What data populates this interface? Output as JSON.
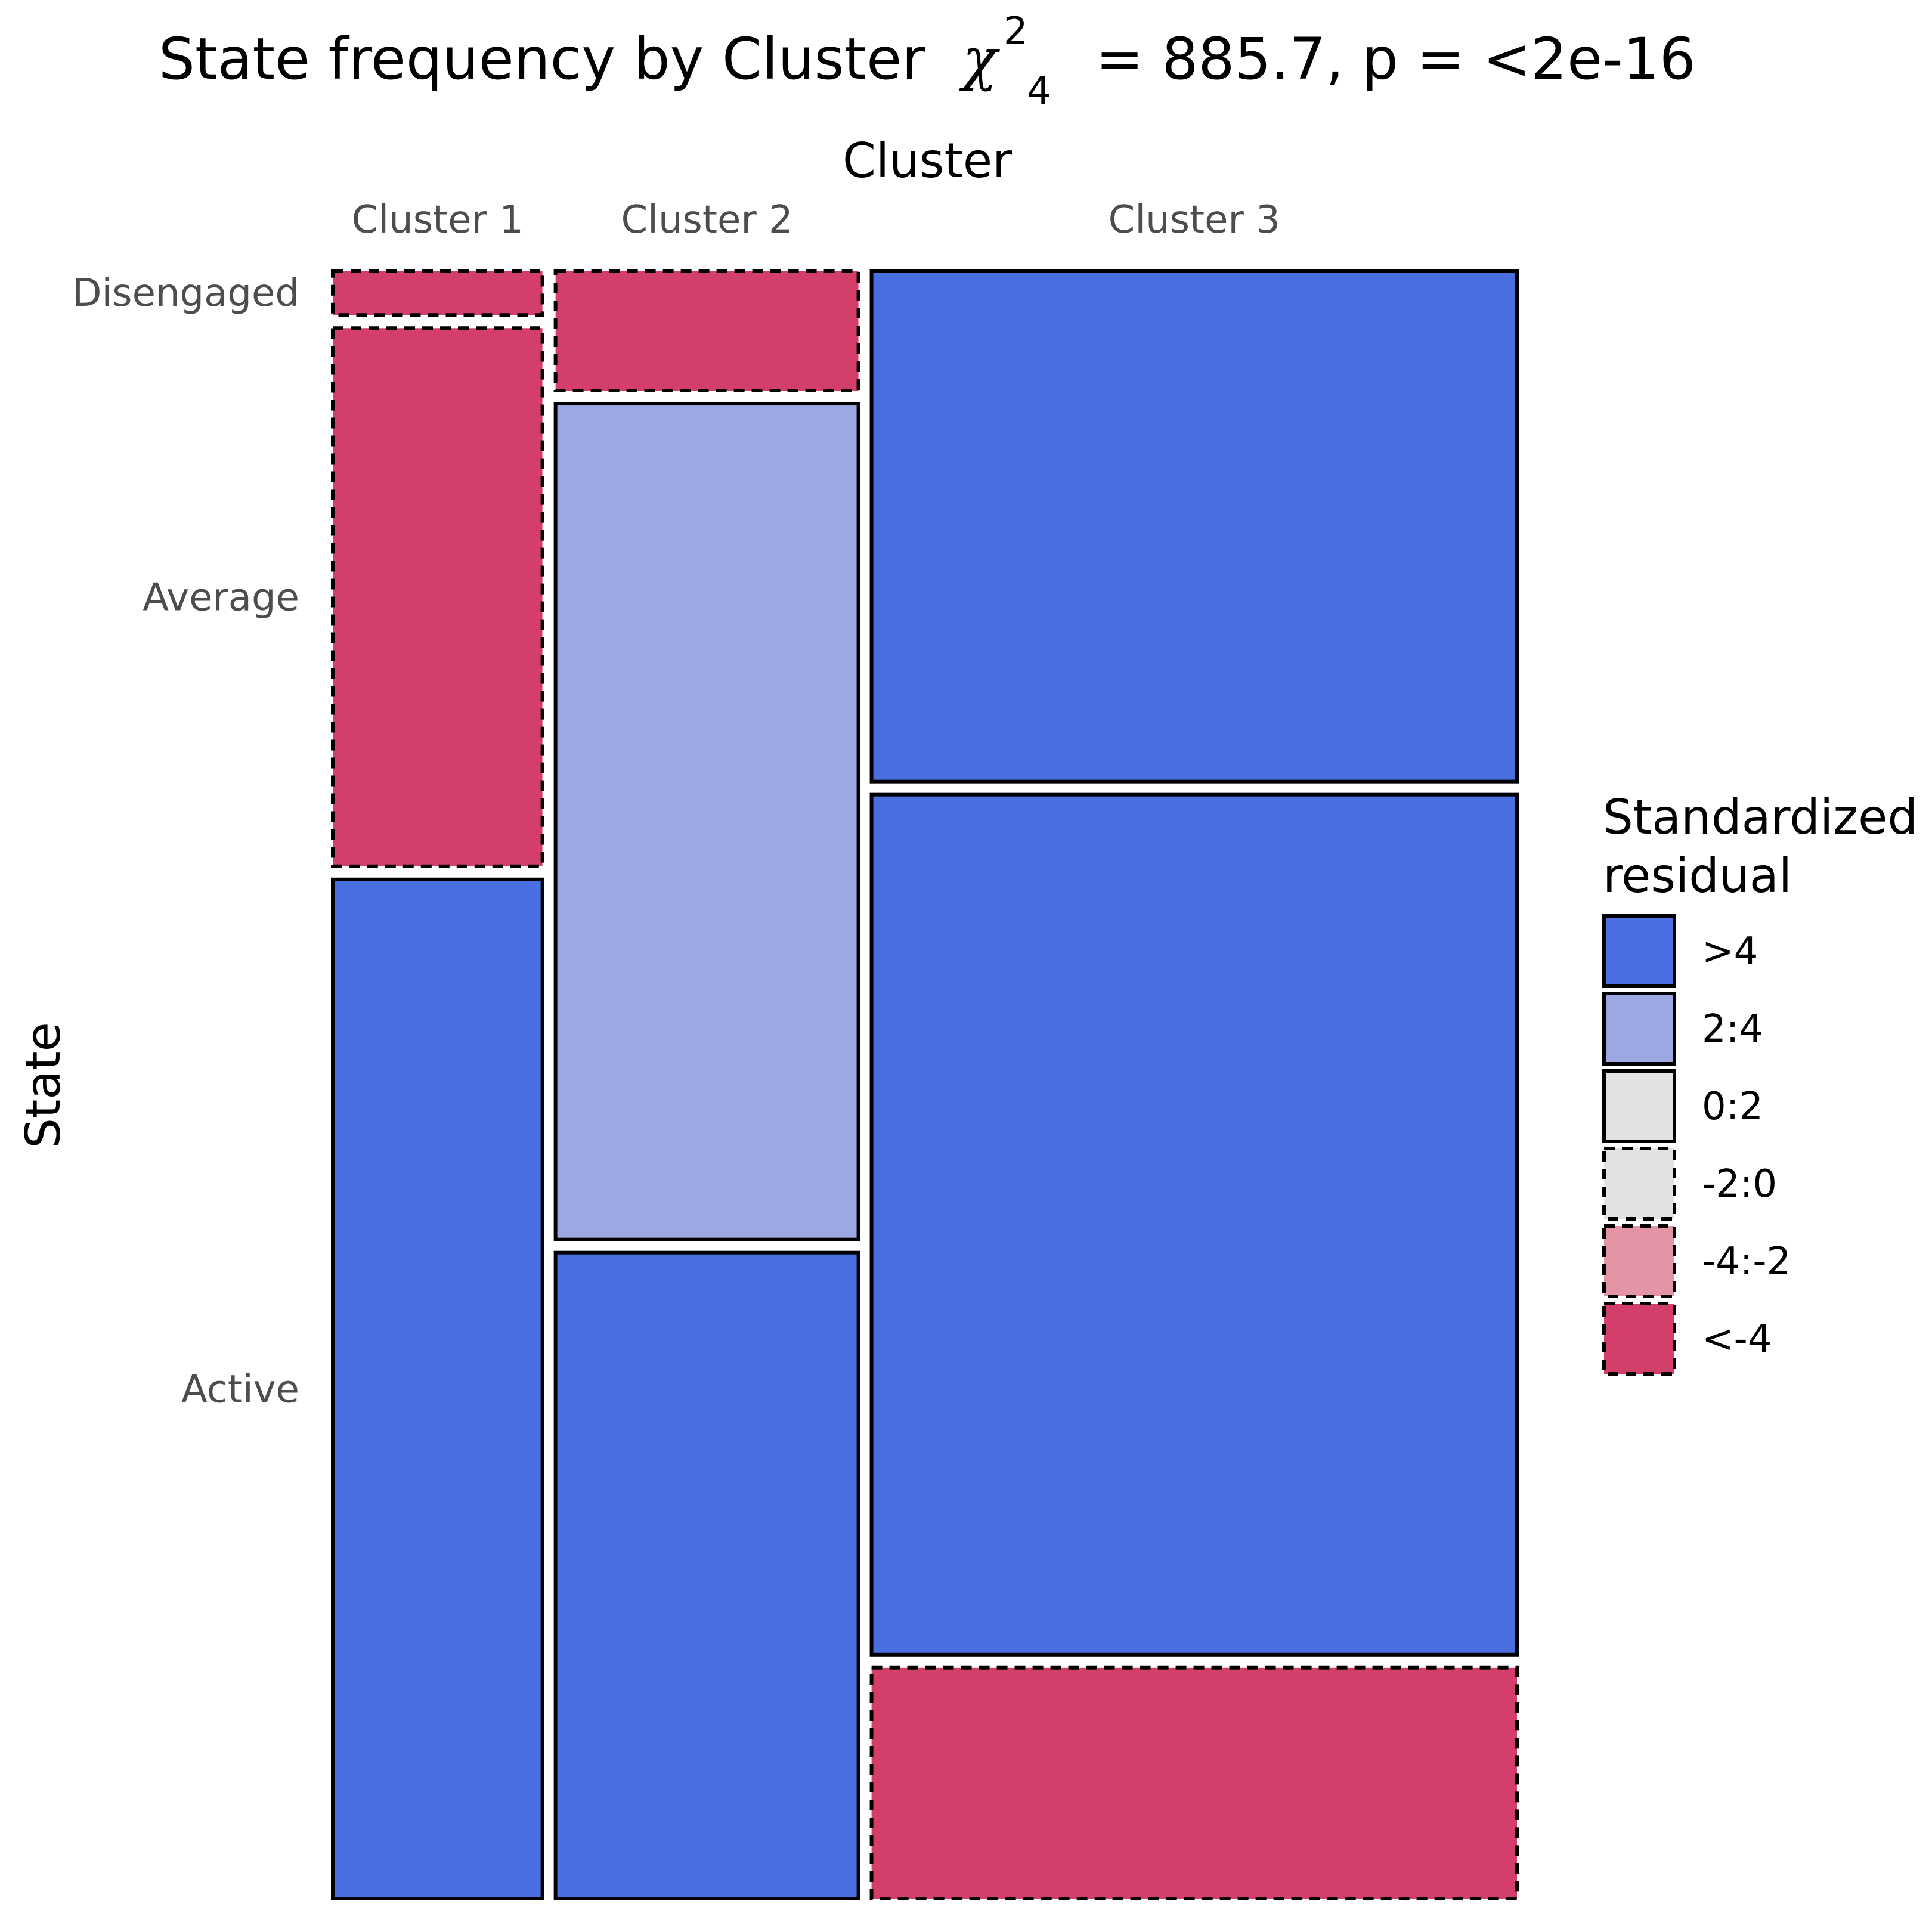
{
  "chart_data": {
    "type": "mosaic",
    "title": {
      "prefix": "State frequency by Cluster",
      "chi_symbol": "χ",
      "chi_sup": "2",
      "chi_sub": "4",
      "suffix": "=  885.7, p = <2e-16"
    },
    "xlabel": "Cluster",
    "ylabel": "State",
    "columns": [
      "Cluster 1",
      "Cluster 2",
      "Cluster 3"
    ],
    "column_widths": [
      0.182,
      0.262,
      0.556
    ],
    "rows": [
      "Disengaged",
      "Average",
      "Active"
    ],
    "cells": [
      {
        "column": "Cluster 1",
        "proportions": [
          0.029,
          0.336,
          0.635
        ],
        "classes": [
          "<-4",
          "<-4",
          ">4"
        ]
      },
      {
        "column": "Cluster 2",
        "proportions": [
          0.076,
          0.521,
          0.403
        ],
        "classes": [
          "<-4",
          "2:4",
          ">4"
        ]
      },
      {
        "column": "Cluster 3",
        "proportions": [
          0.319,
          0.536,
          0.145
        ],
        "classes": [
          ">4",
          ">4",
          "<-4"
        ]
      }
    ],
    "legend": {
      "title": [
        "Standardized",
        "residual"
      ],
      "items": [
        {
          "label": ">4",
          "color": "#4A6FE1",
          "dashed": false
        },
        {
          "label": "2:4",
          "color": "#9DA8E2",
          "dashed": false
        },
        {
          "label": "0:2",
          "color": "#E2E2E2",
          "dashed": false
        },
        {
          "label": "-2:0",
          "color": "#E2E2E2",
          "dashed": true
        },
        {
          "label": "-4:-2",
          "color": "#E495A5",
          "dashed": true
        },
        {
          "label": "<-4",
          "color": "#D33F6A",
          "dashed": true
        }
      ],
      "position": "right"
    },
    "grid": false
  }
}
